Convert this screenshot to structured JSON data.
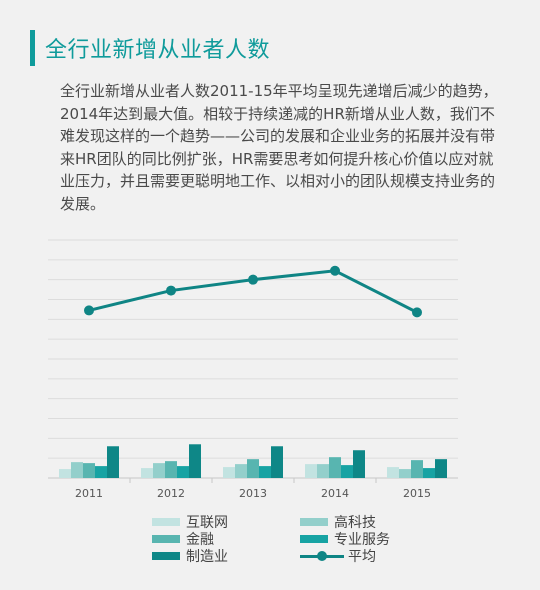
{
  "header": {
    "title": "全行业新增从业者人数"
  },
  "description": "全行业新增从业者人数2011-15年平均呈现先递增后减少的趋势，2014年达到最大值。相较于持续递减的HR新增从业人数，我们不难发现这样的一个趋势——公司的发展和企业业务的拓展并没有带来HR团队的同比例扩张，HR需要思考如何提升核心价值以应对就业压力，并且需要更聪明地工作、以相对小的团队规模支持业务的发展。",
  "colors": {
    "accent": "#0f9b9b",
    "background": "#f1f1f1"
  },
  "chart_data": {
    "type": "bar",
    "categories": [
      "2011",
      "2012",
      "2013",
      "2014",
      "2015"
    ],
    "ylim": [
      0,
      12
    ],
    "grid": true,
    "legend_placement": "bottom",
    "series": [
      {
        "name": "互联网",
        "type": "bar",
        "color": "#c2e3e1",
        "values": [
          0.45,
          0.5,
          0.55,
          0.7,
          0.55
        ]
      },
      {
        "name": "高科技",
        "type": "bar",
        "color": "#93cfcb",
        "values": [
          0.8,
          0.75,
          0.7,
          0.7,
          0.45
        ]
      },
      {
        "name": "金融",
        "type": "bar",
        "color": "#58b5b0",
        "values": [
          0.75,
          0.85,
          0.95,
          1.05,
          0.9
        ]
      },
      {
        "name": "专业服务",
        "type": "bar",
        "color": "#17a3a3",
        "values": [
          0.6,
          0.6,
          0.6,
          0.65,
          0.5
        ]
      },
      {
        "name": "制造业",
        "type": "bar",
        "color": "#0e8787",
        "values": [
          1.6,
          1.7,
          1.6,
          1.4,
          0.95
        ]
      },
      {
        "name": "平均",
        "type": "line",
        "color": "#0f8585",
        "values": [
          8.45,
          9.45,
          10.0,
          10.45,
          8.35
        ]
      }
    ]
  },
  "legend": {
    "items": [
      "互联网",
      "高科技",
      "金融",
      "专业服务",
      "制造业",
      "平均"
    ]
  }
}
